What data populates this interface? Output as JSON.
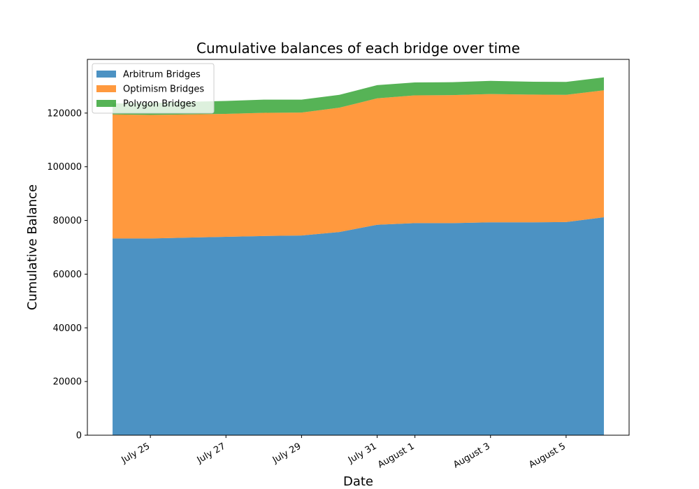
{
  "chart_data": {
    "type": "area",
    "stacked": true,
    "title": "Cumulative balances of each bridge over time",
    "xlabel": "Date",
    "ylabel": "Cumulative Balance",
    "x": [
      "2023-07-24",
      "2023-07-25",
      "2023-07-26",
      "2023-07-27",
      "2023-07-28",
      "2023-07-29",
      "2023-07-30",
      "2023-07-31",
      "2023-08-01",
      "2023-08-02",
      "2023-08-03",
      "2023-08-04",
      "2023-08-05",
      "2023-08-06"
    ],
    "x_ticks": [
      {
        "date": "2023-07-25",
        "label": "July 25"
      },
      {
        "date": "2023-07-27",
        "label": "July 27"
      },
      {
        "date": "2023-07-29",
        "label": "July 29"
      },
      {
        "date": "2023-07-31",
        "label": "July 31"
      },
      {
        "date": "2023-08-01",
        "label": "August 1"
      },
      {
        "date": "2023-08-03",
        "label": "August 3"
      },
      {
        "date": "2023-08-05",
        "label": "August 5"
      }
    ],
    "xlim": [
      "2023-07-23T08:00",
      "2023-08-06T16:00"
    ],
    "ylim": [
      0,
      140000
    ],
    "y_ticks": [
      0,
      20000,
      40000,
      60000,
      80000,
      100000,
      120000
    ],
    "grid": false,
    "legend_position": "top-left",
    "series": [
      {
        "name": "Arbitrum Bridges",
        "color": "#1f77b4",
        "values": [
          73300,
          73300,
          73600,
          73900,
          74200,
          74400,
          75700,
          78400,
          79000,
          79000,
          79300,
          79300,
          79400,
          81200
        ]
      },
      {
        "name": "Optimism Bridges",
        "color": "#ff7f0e",
        "values": [
          46200,
          46000,
          45900,
          45800,
          45900,
          45800,
          46300,
          47100,
          47600,
          47700,
          47800,
          47600,
          47400,
          47300
        ]
      },
      {
        "name": "Polygon Bridges",
        "color": "#2ca02c",
        "values": [
          4100,
          4400,
          4700,
          4800,
          4900,
          4800,
          4800,
          4900,
          4800,
          4800,
          4900,
          4800,
          4800,
          4800
        ]
      }
    ]
  }
}
